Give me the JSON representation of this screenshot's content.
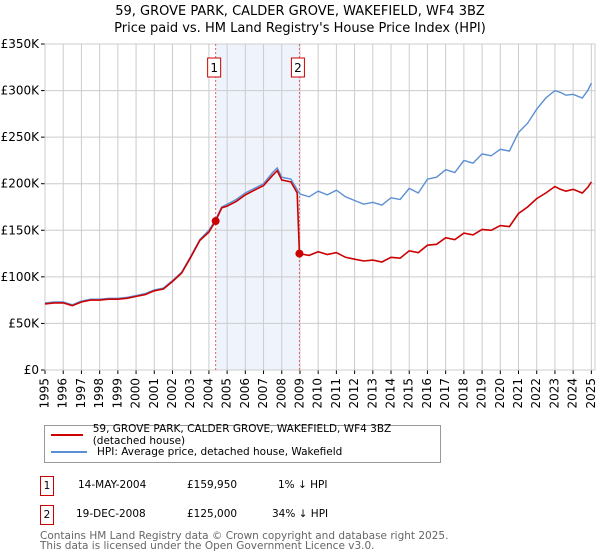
{
  "title": "59, GROVE PARK, CALDER GROVE, WAKEFIELD, WF4 3BZ",
  "subtitle": "Price paid vs. HM Land Registry's House Price Index (HPI)",
  "colors": {
    "property": "#cc0000",
    "hpi": "#5b8fd4",
    "shade": "#eef3fc",
    "grid": "#cccccc"
  },
  "chart_data": {
    "type": "line",
    "title": "59, GROVE PARK, CALDER GROVE, WAKEFIELD, WF4 3BZ — Price paid vs. HM Land Registry's House Price Index (HPI)",
    "xlim": [
      1995,
      2025.2
    ],
    "ylim": [
      0,
      350000
    ],
    "grid": true,
    "yticks": [
      0,
      50000,
      100000,
      150000,
      200000,
      250000,
      300000,
      350000
    ],
    "ytick_labels": [
      "£0",
      "£50K",
      "£100K",
      "£150K",
      "£200K",
      "£250K",
      "£300K",
      "£350K"
    ],
    "xticks": [
      "1995",
      "1996",
      "1997",
      "1998",
      "1999",
      "2000",
      "2001",
      "2002",
      "2003",
      "2004",
      "2005",
      "2006",
      "2007",
      "2008",
      "2009",
      "2010",
      "2011",
      "2012",
      "2013",
      "2014",
      "2015",
      "2016",
      "2017",
      "2018",
      "2019",
      "2020",
      "2021",
      "2022",
      "2023",
      "2024",
      "2025"
    ],
    "shaded_range": [
      2004.37,
      2008.97
    ],
    "series": [
      {
        "name": "HPI: Average price, detached house, Wakefield",
        "color": "#5b8fd4",
        "x": [
          1995,
          1995.5,
          1996,
          1996.5,
          1997,
          1997.5,
          1998,
          1998.5,
          1999,
          1999.5,
          2000,
          2000.5,
          2001,
          2001.5,
          2002,
          2002.5,
          2003,
          2003.5,
          2004,
          2004.37,
          2004.7,
          2005,
          2005.5,
          2006,
          2006.5,
          2007,
          2007.5,
          2007.75,
          2008,
          2008.5,
          2008.9,
          2009,
          2009.5,
          2010,
          2010.5,
          2011,
          2011.5,
          2012,
          2012.5,
          2013,
          2013.5,
          2014,
          2014.5,
          2015,
          2015.5,
          2016,
          2016.5,
          2017,
          2017.5,
          2018,
          2018.5,
          2019,
          2019.5,
          2020,
          2020.5,
          2021,
          2021.5,
          2022,
          2022.5,
          2023,
          2023.3,
          2023.6,
          2024,
          2024.5,
          2024.8,
          2025
        ],
        "y": [
          72000,
          73000,
          73000,
          70000,
          74000,
          76000,
          76000,
          77000,
          77000,
          78000,
          80000,
          82000,
          86000,
          88000,
          96000,
          105000,
          122000,
          140000,
          150000,
          161500,
          175000,
          178000,
          183000,
          190000,
          195000,
          200000,
          212000,
          217000,
          207000,
          205000,
          192000,
          189000,
          186000,
          192000,
          188000,
          193000,
          186000,
          182000,
          178000,
          180000,
          177000,
          185000,
          183000,
          195000,
          190000,
          205000,
          207000,
          215000,
          212000,
          225000,
          222000,
          232000,
          230000,
          237000,
          235000,
          255000,
          265000,
          280000,
          292000,
          300000,
          298000,
          295000,
          296000,
          292000,
          300000,
          308000
        ]
      },
      {
        "name": "59, GROVE PARK, CALDER GROVE, WAKEFIELD, WF4 3BZ (detached house)",
        "color": "#cc0000",
        "x": [
          1995,
          1995.5,
          1996,
          1996.5,
          1997,
          1997.5,
          1998,
          1998.5,
          1999,
          1999.5,
          2000,
          2000.5,
          2001,
          2001.5,
          2002,
          2002.5,
          2003,
          2003.5,
          2004,
          2004.37,
          2004.7,
          2005,
          2005.5,
          2006,
          2006.5,
          2007,
          2007.5,
          2007.75,
          2008,
          2008.5,
          2008.85,
          2008.97,
          2009.5,
          2010,
          2010.5,
          2011,
          2011.5,
          2012,
          2012.5,
          2013,
          2013.5,
          2014,
          2014.5,
          2015,
          2015.5,
          2016,
          2016.5,
          2017,
          2017.5,
          2018,
          2018.5,
          2019,
          2019.5,
          2020,
          2020.5,
          2021,
          2021.5,
          2022,
          2022.5,
          2023,
          2023.3,
          2023.6,
          2024,
          2024.5,
          2024.8,
          2025
        ],
        "y": [
          71000,
          72000,
          72000,
          69000,
          73000,
          75000,
          75000,
          76000,
          76000,
          77000,
          79000,
          81000,
          85000,
          87000,
          95000,
          104000,
          121000,
          139000,
          148000,
          159950,
          174000,
          176000,
          181000,
          188000,
          193000,
          198000,
          209000,
          214000,
          204000,
          202000,
          190000,
          125000,
          123000,
          127000,
          124000,
          126000,
          121000,
          119000,
          117000,
          118000,
          116000,
          121000,
          120000,
          128000,
          126000,
          134000,
          135000,
          142000,
          140000,
          147000,
          145000,
          151000,
          150000,
          155000,
          154000,
          168000,
          175000,
          184000,
          190000,
          197000,
          194000,
          192000,
          194000,
          190000,
          196000,
          202000
        ]
      }
    ],
    "markers": [
      {
        "label": "1",
        "x": 2004.37,
        "y": 159950
      },
      {
        "label": "2",
        "x": 2008.97,
        "y": 125000
      }
    ]
  },
  "legend": {
    "property": "59, GROVE PARK, CALDER GROVE, WAKEFIELD, WF4 3BZ (detached house)",
    "hpi": "HPI: Average price, detached house, Wakefield"
  },
  "transactions": [
    {
      "num": "1",
      "date": "14-MAY-2004",
      "price": "£159,950",
      "hpi": "1% ↓ HPI"
    },
    {
      "num": "2",
      "date": "19-DEC-2008",
      "price": "£125,000",
      "hpi": "34% ↓ HPI"
    }
  ],
  "footer": {
    "line1": "Contains HM Land Registry data © Crown copyright and database right 2025.",
    "line2": "This data is licensed under the Open Government Licence v3.0."
  }
}
